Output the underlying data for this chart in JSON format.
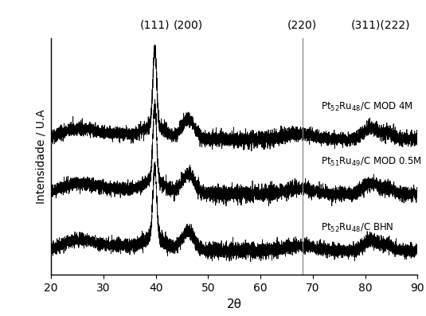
{
  "xlim": [
    20,
    90
  ],
  "xlabel": "2θ",
  "ylabel": "Intensidade / U.A",
  "vline_x": 68.0,
  "peak_111": 39.8,
  "peak_200": 46.2,
  "peak_311": 81.2,
  "peak_222": 84.5,
  "label_111": "(111)",
  "label_200": "(200)",
  "label_220": "(220)",
  "label_311222": "(311)(222)",
  "annotation_top": "Pt$_{52}$Ru$_{48}$/C MOD 4M",
  "annotation_mid": "Pt$_{51}$Ru$_{49}$/C MOD 0.5M",
  "annotation_bot": "Pt$_{52}$Ru$_{48}$/C BHN",
  "offsets": [
    0.55,
    0.28,
    0.0
  ],
  "noise_seed": 42,
  "background_color": "#ffffff",
  "line_color": "#000000",
  "ylim": [
    -0.12,
    1.05
  ]
}
